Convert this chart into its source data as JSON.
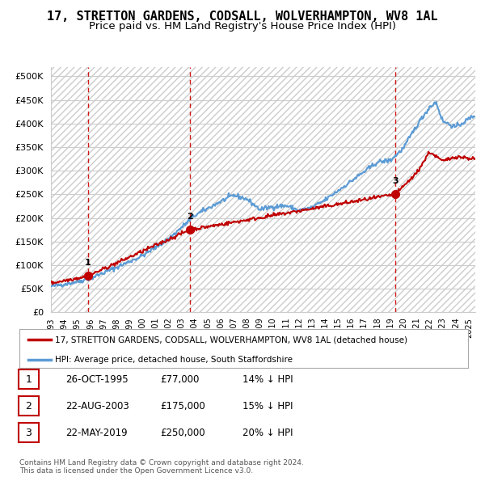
{
  "title": "17, STRETTON GARDENS, CODSALL, WOLVERHAMPTON, WV8 1AL",
  "subtitle": "Price paid vs. HM Land Registry's House Price Index (HPI)",
  "title_fontsize": 11,
  "subtitle_fontsize": 9.5,
  "ytick_values": [
    0,
    50000,
    100000,
    150000,
    200000,
    250000,
    300000,
    350000,
    400000,
    450000,
    500000
  ],
  "ylim": [
    0,
    520000
  ],
  "xlim_start": 1993.0,
  "xlim_end": 2025.5,
  "hpi_color": "#5B9BD5",
  "price_color": "#C00000",
  "vline_color": "#CC0000",
  "sale_points": [
    {
      "year": 1995.82,
      "price": 77000,
      "label": "1"
    },
    {
      "year": 2003.64,
      "price": 175000,
      "label": "2"
    },
    {
      "year": 2019.39,
      "price": 250000,
      "label": "3"
    }
  ],
  "legend_entries": [
    {
      "label": "17, STRETTON GARDENS, CODSALL, WOLVERHAMPTON, WV8 1AL (detached house)",
      "color": "#C00000"
    },
    {
      "label": "HPI: Average price, detached house, South Staffordshire",
      "color": "#5B9BD5"
    }
  ],
  "table_rows": [
    {
      "num": "1",
      "date": "26-OCT-1995",
      "price": "£77,000",
      "hpi": "14% ↓ HPI"
    },
    {
      "num": "2",
      "date": "22-AUG-2003",
      "price": "£175,000",
      "hpi": "15% ↓ HPI"
    },
    {
      "num": "3",
      "date": "22-MAY-2019",
      "price": "£250,000",
      "hpi": "20% ↓ HPI"
    }
  ],
  "footer": "Contains HM Land Registry data © Crown copyright and database right 2024.\nThis data is licensed under the Open Government Licence v3.0.",
  "background_color": "#FFFFFF",
  "grid_color": "#CCCCCC"
}
